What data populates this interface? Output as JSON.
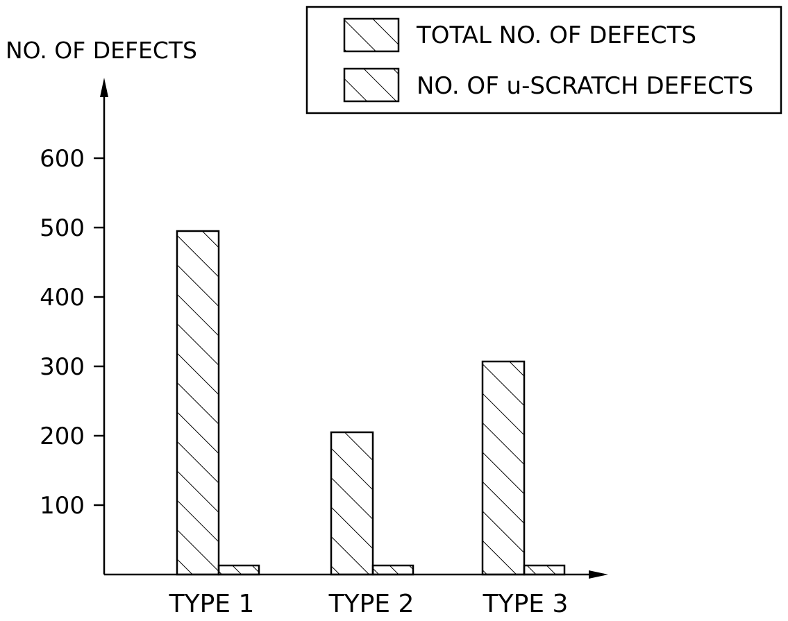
{
  "chart_data": {
    "type": "bar",
    "title": "",
    "xlabel": "",
    "ylabel": "NO. OF DEFECTS",
    "categories": [
      "TYPE 1",
      "TYPE 2",
      "TYPE 3"
    ],
    "series": [
      {
        "name": "TOTAL NO. OF DEFECTS",
        "values": [
          495,
          205,
          307
        ]
      },
      {
        "name": "NO. OF u-SCRATCH DEFECTS",
        "values": [
          13,
          13,
          13
        ]
      }
    ],
    "ylim": [
      0,
      700
    ],
    "yticks": [
      100,
      200,
      300,
      400,
      500,
      600
    ],
    "grid": false,
    "legend_position": "top-right",
    "bar_fill": "diagonal-hatch",
    "colors": {
      "ink": "#000000",
      "background": "#ffffff"
    }
  }
}
